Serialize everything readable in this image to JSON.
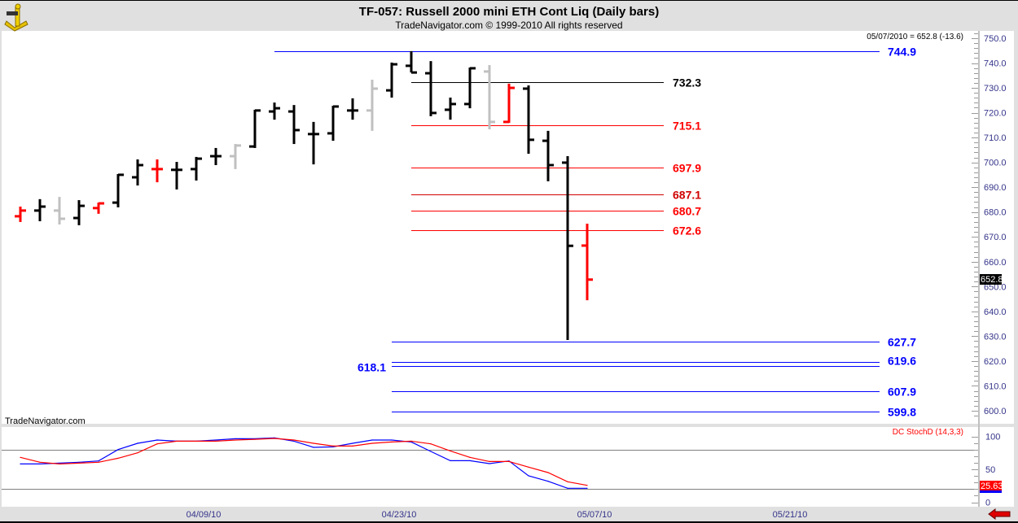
{
  "header": {
    "title": "TF-057:  Russell 2000 mini ETH Cont Liq  (Daily bars)",
    "subtitle": "TradeNavigator.com © 1999-2010 All rights reserved",
    "logo_icon": "sextant-logo-icon"
  },
  "readout": "05/07/2010 = 652.8 (-13.6)",
  "watermark": "TradeNavigator.com",
  "last_price_tag": "652.8",
  "stoch_tag": "25.63",
  "stoch_title": "DC StochD (14,3,3)",
  "nav_arrow_icon": "red-left-arrow-icon",
  "colors": {
    "up": "#000000",
    "down_red": "#ff0000",
    "neutral_gray": "#c0c0c0",
    "blue_level": "#0000ff",
    "red_level": "#ff0000",
    "axis_text": "#33338a",
    "stoch_k": "#0000ff",
    "stoch_d": "#ff0000"
  },
  "chart_data": [
    {
      "type": "ohlc",
      "title": "TF-057:  Russell 2000 mini ETH Cont Liq  (Daily bars)",
      "ylim": [
        597,
        752
      ],
      "y_ticks": [
        "750.0",
        "740.0",
        "730.0",
        "720.0",
        "710.0",
        "700.0",
        "690.0",
        "680.0",
        "670.0",
        "660.0",
        "650.0",
        "640.0",
        "630.0",
        "620.0",
        "610.0",
        "600.0"
      ],
      "x_ticks": [
        {
          "bar": 10,
          "label": "04/09/10"
        },
        {
          "bar": 20,
          "label": "04/23/10"
        },
        {
          "bar": 30,
          "label": "05/07/10"
        },
        {
          "bar": 40,
          "label": "05/21/10"
        }
      ],
      "bars": [
        {
          "o": 678.3,
          "h": 682.2,
          "l": 676.0,
          "c": 680.6,
          "color": "red"
        },
        {
          "o": 680.6,
          "h": 685.2,
          "l": 676.3,
          "c": 682.2,
          "color": "black"
        },
        {
          "o": 680.6,
          "h": 686.1,
          "l": 675.0,
          "c": 677.3,
          "color": "gray"
        },
        {
          "o": 677.6,
          "h": 684.8,
          "l": 674.7,
          "c": 682.5,
          "color": "black"
        },
        {
          "o": 681.6,
          "h": 683.8,
          "l": 679.3,
          "c": 683.5,
          "color": "red"
        },
        {
          "o": 683.8,
          "h": 695.3,
          "l": 681.9,
          "c": 695.0,
          "color": "black"
        },
        {
          "o": 694.0,
          "h": 701.2,
          "l": 690.7,
          "c": 698.9,
          "color": "black"
        },
        {
          "o": 697.3,
          "h": 701.2,
          "l": 692.0,
          "c": 697.3,
          "color": "red"
        },
        {
          "o": 697.0,
          "h": 700.2,
          "l": 689.1,
          "c": 697.0,
          "color": "black"
        },
        {
          "o": 697.3,
          "h": 702.2,
          "l": 692.7,
          "c": 701.5,
          "color": "black"
        },
        {
          "o": 702.5,
          "h": 705.8,
          "l": 698.9,
          "c": 702.5,
          "color": "black"
        },
        {
          "o": 702.5,
          "h": 707.4,
          "l": 697.3,
          "c": 706.8,
          "color": "gray"
        },
        {
          "o": 706.4,
          "h": 721.2,
          "l": 705.8,
          "c": 720.9,
          "color": "black"
        },
        {
          "o": 720.5,
          "h": 724.1,
          "l": 717.2,
          "c": 721.8,
          "color": "black"
        },
        {
          "o": 720.5,
          "h": 723.1,
          "l": 707.4,
          "c": 713.0,
          "color": "black"
        },
        {
          "o": 711.4,
          "h": 716.3,
          "l": 699.2,
          "c": 711.4,
          "color": "black"
        },
        {
          "o": 711.7,
          "h": 722.8,
          "l": 708.7,
          "c": 722.5,
          "color": "black"
        },
        {
          "o": 720.9,
          "h": 725.8,
          "l": 717.2,
          "c": 720.9,
          "color": "black"
        },
        {
          "o": 720.9,
          "h": 733.3,
          "l": 712.7,
          "c": 729.7,
          "color": "gray"
        },
        {
          "o": 729.0,
          "h": 740.2,
          "l": 726.1,
          "c": 739.5,
          "color": "black"
        },
        {
          "o": 738.9,
          "h": 744.8,
          "l": 736.2,
          "c": 736.2,
          "color": "black"
        },
        {
          "o": 735.9,
          "h": 740.8,
          "l": 718.6,
          "c": 719.9,
          "color": "black"
        },
        {
          "o": 721.2,
          "h": 726.1,
          "l": 717.2,
          "c": 723.5,
          "color": "black"
        },
        {
          "o": 723.5,
          "h": 738.2,
          "l": 721.8,
          "c": 737.9,
          "color": "black"
        },
        {
          "o": 736.6,
          "h": 739.2,
          "l": 713.3,
          "c": 716.3,
          "color": "gray"
        },
        {
          "o": 716.3,
          "h": 731.7,
          "l": 715.9,
          "c": 730.0,
          "color": "red"
        },
        {
          "o": 729.7,
          "h": 731.0,
          "l": 703.5,
          "c": 709.1,
          "color": "black"
        },
        {
          "o": 708.7,
          "h": 712.7,
          "l": 692.4,
          "c": 698.9,
          "color": "black"
        },
        {
          "o": 699.9,
          "h": 702.5,
          "l": 628.5,
          "c": 666.4,
          "color": "black"
        },
        {
          "o": 666.5,
          "h": 675.3,
          "l": 644.5,
          "c": 652.8,
          "color": "red"
        }
      ],
      "levels": [
        {
          "value": 744.9,
          "label": "744.9",
          "color": "#0000ff",
          "from_bar": 13,
          "label_side": "right"
        },
        {
          "value": 732.3,
          "label": "732.3",
          "color": "#000000",
          "from_bar": 20,
          "label_side": "mid"
        },
        {
          "value": 715.1,
          "label": "715.1",
          "color": "#ff0000",
          "from_bar": 20,
          "label_side": "mid"
        },
        {
          "value": 697.9,
          "label": "697.9",
          "color": "#ff0000",
          "from_bar": 20,
          "label_side": "mid"
        },
        {
          "value": 687.1,
          "label": "687.1",
          "color": "#d00000",
          "from_bar": 20,
          "label_side": "mid"
        },
        {
          "value": 680.7,
          "label": "680.7",
          "color": "#ff0000",
          "from_bar": 20,
          "label_side": "mid"
        },
        {
          "value": 672.6,
          "label": "672.6",
          "color": "#ff0000",
          "from_bar": 20,
          "label_side": "mid"
        },
        {
          "value": 627.7,
          "label": "627.7",
          "color": "#0000ff",
          "from_bar": 19,
          "label_side": "right"
        },
        {
          "value": 619.6,
          "label": "619.6",
          "color": "#0000ff",
          "from_bar": 19,
          "label_side": "right"
        },
        {
          "value": 618.1,
          "label": "618.1",
          "color": "#0000ff",
          "from_bar": 19,
          "label_side": "left"
        },
        {
          "value": 607.9,
          "label": "607.9",
          "color": "#0000ff",
          "from_bar": 19,
          "label_side": "right"
        },
        {
          "value": 599.8,
          "label": "599.8",
          "color": "#0000ff",
          "from_bar": 19,
          "label_side": "right"
        }
      ]
    },
    {
      "type": "line",
      "title": "DC StochD (14,3,3)",
      "ylim": [
        0,
        100
      ],
      "y_ticks": [
        "100",
        "50",
        "0"
      ],
      "reference_lines": [
        80,
        20
      ],
      "series": [
        {
          "color": "#0000ff",
          "values": [
            58.2,
            58.2,
            59.4,
            60.7,
            62.7,
            80.0,
            89.5,
            94.4,
            92.7,
            92.7,
            94.4,
            96.4,
            96.4,
            97.7,
            92.7,
            83.3,
            84.1,
            89.5,
            94.4,
            94.4,
            91.5,
            77.1,
            63.1,
            63.1,
            58.6,
            62.7,
            40.1,
            31.9,
            21.2,
            21.2
          ]
        },
        {
          "color": "#ff0000",
          "values": [
            68.1,
            60.7,
            58.2,
            59.4,
            60.7,
            66.8,
            75.1,
            88.6,
            92.7,
            92.7,
            92.7,
            94.4,
            95.6,
            96.9,
            94.4,
            89.5,
            85.3,
            85.3,
            89.5,
            91.5,
            92.7,
            88.6,
            77.9,
            68.1,
            61.9,
            61.9,
            53.3,
            45.1,
            31.1,
            25.63
          ]
        }
      ]
    }
  ]
}
